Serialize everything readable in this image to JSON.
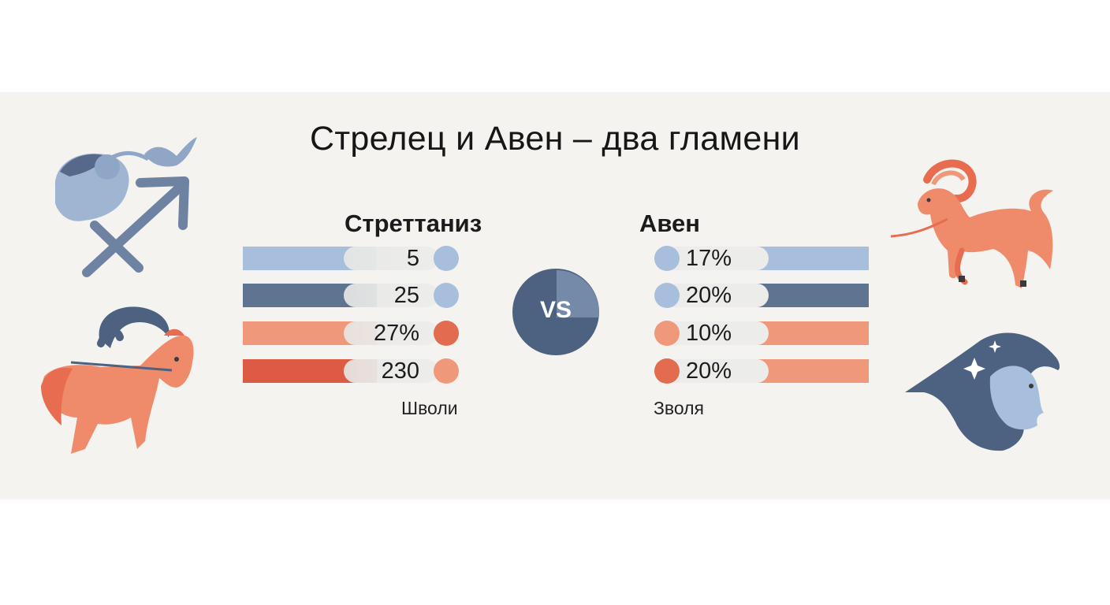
{
  "title": "Стрелец и Авен – два гламени",
  "vs_label": "VS",
  "left": {
    "title": "Стреттаниз",
    "caption": "Шволи",
    "rows": [
      {
        "value": "5",
        "bar_color": "#a7bfdc",
        "dot_color": "#a7bfdc"
      },
      {
        "value": "25",
        "bar_color": "#5f7491",
        "dot_color": "#a7bfdc"
      },
      {
        "value": "27%",
        "bar_color": "#f0987a",
        "dot_color": "#e26b50"
      },
      {
        "value": "230",
        "bar_color": "#dd5a45",
        "dot_color": "#f0987a"
      }
    ]
  },
  "right": {
    "title": "Авен",
    "caption": "Зволя",
    "rows": [
      {
        "value": "17%",
        "bar_color": "#a7bfdc",
        "dot_color": "#a7bfdc"
      },
      {
        "value": "20%",
        "bar_color": "#5f7491",
        "dot_color": "#a7bfdc"
      },
      {
        "value": "10%",
        "bar_color": "#f0987a",
        "dot_color": "#f0987a"
      },
      {
        "value": "20%",
        "bar_color": "#f0987a",
        "dot_color": "#e26b50"
      }
    ]
  },
  "colors": {
    "navy": "#4d6180",
    "light_blue": "#a7bfdc",
    "coral": "#f0987a",
    "red": "#dd5a45",
    "band": "#f4f3f0"
  },
  "icons": [
    "sagittarius-symbol-icon",
    "centaur-horse-icon",
    "ram-icon",
    "moon-face-icon"
  ]
}
